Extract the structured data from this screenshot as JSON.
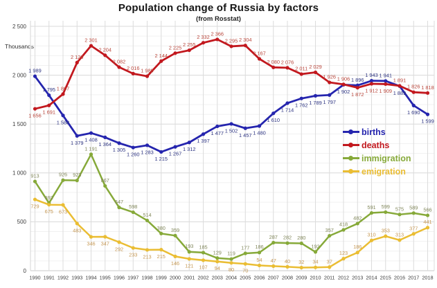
{
  "title": "Population change of Russia by factors",
  "subtitle": "(from Rosstat)",
  "y_axis_unit_label": "Thousands",
  "chart_data": {
    "type": "line",
    "x": [
      1990,
      1991,
      1992,
      1993,
      1994,
      1995,
      1996,
      1997,
      1998,
      1999,
      2000,
      2001,
      2002,
      2003,
      2004,
      2005,
      2006,
      2007,
      2008,
      2009,
      2010,
      2011,
      2012,
      2013,
      2014,
      2015,
      2016,
      2017,
      2018
    ],
    "ylim": [
      0,
      2500
    ],
    "y_major_ticks": [
      0,
      500,
      1000,
      1500,
      2000,
      2500
    ],
    "y_minor_step": 100,
    "grid": true,
    "units": "thousands",
    "legend_position": "middle-right",
    "series": [
      {
        "name": "births",
        "color": "#2525AE",
        "label_color": "#2B3280",
        "values": [
          1989,
          1795,
          1588,
          1379,
          1408,
          1364,
          1305,
          1260,
          1283,
          1215,
          1267,
          1312,
          1397,
          1477,
          1502,
          1457,
          1480,
          1610,
          1714,
          1762,
          1789,
          1797,
          1902,
          1896,
          1943,
          1941,
          1889,
          1690,
          1599
        ],
        "label_side": [
          "a",
          "a",
          "b",
          "b",
          "b",
          "b",
          "b",
          "b",
          "b",
          "b",
          "b",
          "b",
          "b",
          "b",
          "b",
          "b",
          "b",
          "b",
          "b",
          "b",
          "b",
          "b",
          "b",
          "a",
          "a",
          "a",
          "b",
          "b",
          "b"
        ]
      },
      {
        "name": "deaths",
        "color": "#C2181E",
        "label_color": "#B8453A",
        "values": [
          1656,
          1691,
          1807,
          2129,
          2301,
          2204,
          2082,
          2016,
          1989,
          2144,
          2225,
          2255,
          2332,
          2366,
          2295,
          2304,
          2167,
          2080,
          2076,
          2011,
          2029,
          1926,
          1906,
          1872,
          1912,
          1909,
          1891,
          1826,
          1818
        ],
        "label_side": [
          "b",
          "b",
          "a",
          "a",
          "a",
          "a",
          "a",
          "a",
          "a",
          "a",
          "a",
          "a",
          "a",
          "a",
          "a",
          "a",
          "a",
          "a",
          "a",
          "a",
          "a",
          "a",
          "a",
          "b",
          "b",
          "b",
          "a",
          "a",
          "a"
        ]
      },
      {
        "name": "immigration",
        "color": "#86A939",
        "label_color": "#82885C",
        "values": [
          913,
          692,
          926,
          923,
          1191,
          867,
          647,
          598,
          514,
          380,
          359,
          193,
          185,
          129,
          119,
          177,
          186,
          287,
          282,
          280,
          192,
          357,
          418,
          482,
          591,
          599,
          575,
          589,
          566
        ],
        "label_side": [
          "a",
          "a",
          "a",
          "a",
          "a",
          "a",
          "a",
          "a",
          "a",
          "a",
          "a",
          "a",
          "a",
          "a",
          "a",
          "a",
          "a",
          "a",
          "a",
          "a",
          "a",
          "a",
          "a",
          "a",
          "a",
          "a",
          "a",
          "a",
          "a"
        ]
      },
      {
        "name": "emigration",
        "color": "#EABD33",
        "label_color": "#C69853",
        "values": [
          729,
          675,
          673,
          483,
          346,
          347,
          292,
          233,
          213,
          215,
          146,
          121,
          107,
          94,
          80,
          70,
          54,
          47,
          40,
          32,
          34,
          37,
          123,
          186,
          310,
          353,
          313,
          377,
          441
        ],
        "label_side": [
          "b",
          "b",
          "b",
          "b",
          "b",
          "b",
          "b",
          "b",
          "b",
          "b",
          "b",
          "b",
          "b",
          "b",
          "b",
          "b",
          "a",
          "a",
          "a",
          "a",
          "a",
          "a",
          "a",
          "a",
          "a",
          "a",
          "a",
          "a",
          "a"
        ]
      }
    ]
  }
}
